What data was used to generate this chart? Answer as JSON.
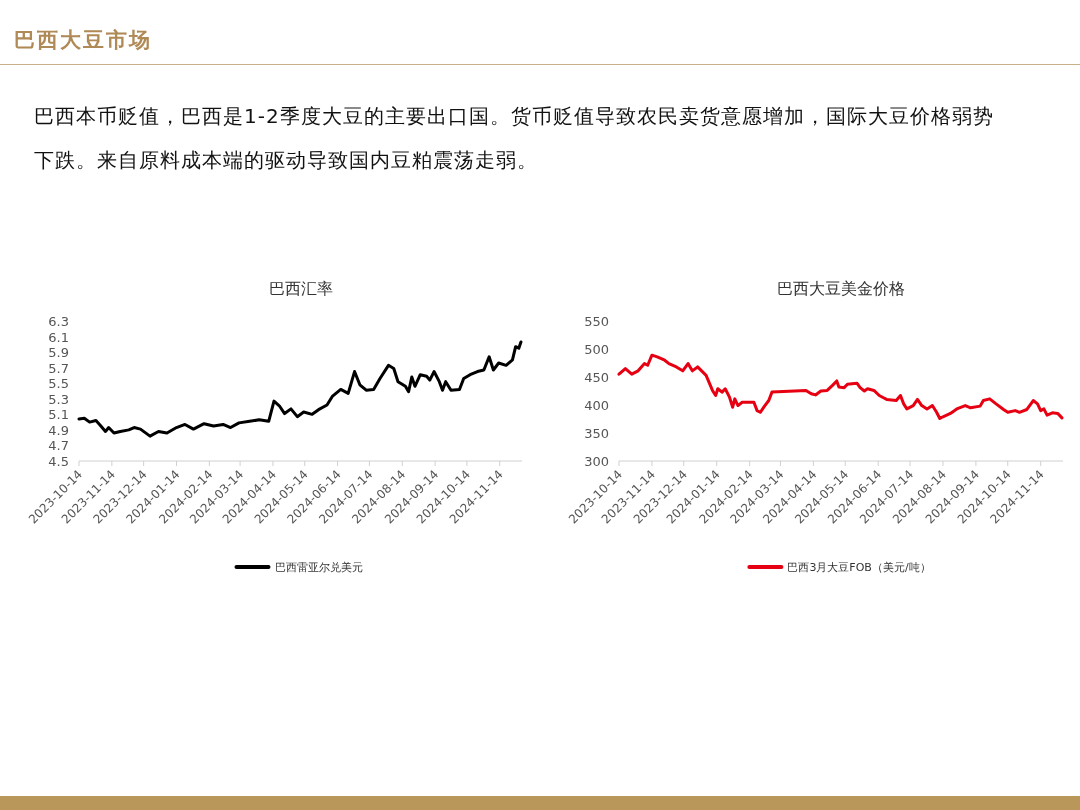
{
  "chart_data": [
    {
      "type": "line",
      "title": "巴西汇率",
      "annotations": [
        "巴西大豆市场",
        "巴西本币贬值，巴西是1-2季度大豆的主要出口国。货币贬值导致农民卖货意愿增加，国际大豆价格弱势下跌。来自原料成本端的驱动导致国内豆粕震荡走弱。"
      ],
      "legend": "bottom",
      "xlim": [
        "2023-10-14",
        "2024-12-05"
      ],
      "xticks": [
        "2023-10-14",
        "2023-11-14",
        "2023-12-14",
        "2024-01-14",
        "2024-02-14",
        "2024-03-14",
        "2024-04-14",
        "2024-05-14",
        "2024-06-14",
        "2024-07-14",
        "2024-08-14",
        "2024-09-14",
        "2024-10-14",
        "2024-11-14"
      ],
      "ylim": [
        4.5,
        6.3
      ],
      "yticks": [
        4.5,
        4.7,
        4.9,
        5.1,
        5.3,
        5.5,
        5.7,
        5.9,
        6.1,
        6.3
      ],
      "series": [
        {
          "name": "巴西雷亚尔兑美元",
          "color": "#000000",
          "x": [
            "2023-10-14",
            "2023-10-19",
            "2023-10-24",
            "2023-10-30",
            "2023-11-03",
            "2023-11-08",
            "2023-11-11",
            "2023-11-16",
            "2023-11-22",
            "2023-11-30",
            "2023-12-05",
            "2023-12-11",
            "2023-12-20",
            "2023-12-28",
            "2024-01-05",
            "2024-01-14",
            "2024-01-22",
            "2024-01-30",
            "2024-02-09",
            "2024-02-18",
            "2024-02-27",
            "2024-03-05",
            "2024-03-13",
            "2024-03-23",
            "2024-04-01",
            "2024-04-10",
            "2024-04-15",
            "2024-04-20",
            "2024-04-25",
            "2024-05-01",
            "2024-05-07",
            "2024-05-13",
            "2024-05-21",
            "2024-05-27",
            "2024-06-04",
            "2024-06-09",
            "2024-06-17",
            "2024-06-24",
            "2024-06-30",
            "2024-07-05",
            "2024-07-11",
            "2024-07-18",
            "2024-07-24",
            "2024-08-01",
            "2024-08-06",
            "2024-08-10",
            "2024-08-17",
            "2024-08-20",
            "2024-08-23",
            "2024-08-26",
            "2024-08-31",
            "2024-09-06",
            "2024-09-09",
            "2024-09-13",
            "2024-09-18",
            "2024-09-21",
            "2024-09-24",
            "2024-09-29",
            "2024-10-07",
            "2024-10-11",
            "2024-10-17",
            "2024-10-24",
            "2024-10-30",
            "2024-11-04",
            "2024-11-08",
            "2024-11-13",
            "2024-11-20",
            "2024-11-26",
            "2024-11-29",
            "2024-12-02",
            "2024-12-04"
          ],
          "values": [
            5.04,
            5.05,
            5.0,
            5.02,
            4.96,
            4.88,
            4.93,
            4.86,
            4.88,
            4.9,
            4.93,
            4.91,
            4.82,
            4.88,
            4.86,
            4.93,
            4.97,
            4.91,
            4.98,
            4.95,
            4.97,
            4.93,
            4.99,
            5.01,
            5.03,
            5.01,
            5.27,
            5.21,
            5.11,
            5.17,
            5.07,
            5.13,
            5.1,
            5.16,
            5.22,
            5.33,
            5.42,
            5.37,
            5.65,
            5.48,
            5.41,
            5.42,
            5.56,
            5.73,
            5.69,
            5.52,
            5.46,
            5.39,
            5.58,
            5.46,
            5.61,
            5.59,
            5.54,
            5.65,
            5.52,
            5.41,
            5.52,
            5.41,
            5.42,
            5.56,
            5.61,
            5.65,
            5.67,
            5.84,
            5.67,
            5.76,
            5.73,
            5.8,
            5.97,
            5.95,
            6.03
          ]
        }
      ]
    },
    {
      "type": "line",
      "title": "巴西大豆美金价格",
      "legend": "bottom",
      "xlim": [
        "2023-10-14",
        "2024-12-05"
      ],
      "xticks": [
        "2023-10-14",
        "2023-11-14",
        "2023-12-14",
        "2024-01-14",
        "2024-02-14",
        "2024-03-14",
        "2024-04-14",
        "2024-05-14",
        "2024-06-14",
        "2024-07-14",
        "2024-08-14",
        "2024-09-14",
        "2024-10-14",
        "2024-11-14"
      ],
      "ylim": [
        300,
        550
      ],
      "yticks": [
        300,
        350,
        400,
        450,
        500,
        550
      ],
      "series": [
        {
          "name": "巴西3月大豆FOB（美元/吨）",
          "color": "#e60012",
          "x": [
            "2023-10-14",
            "2023-10-20",
            "2023-10-26",
            "2023-11-01",
            "2023-11-07",
            "2023-11-10",
            "2023-11-14",
            "2023-11-19",
            "2023-11-26",
            "2023-11-30",
            "2023-12-07",
            "2023-12-13",
            "2023-12-18",
            "2023-12-22",
            "2023-12-27",
            "2024-01-04",
            "2024-01-10",
            "2024-01-13",
            "2024-01-15",
            "2024-01-19",
            "2024-01-22",
            "2024-01-26",
            "2024-01-29",
            "2024-01-31",
            "2024-02-03",
            "2024-02-07",
            "2024-02-18",
            "2024-02-21",
            "2024-02-24",
            "2024-02-28",
            "2024-03-03",
            "2024-03-06",
            "2024-04-07",
            "2024-04-12",
            "2024-04-16",
            "2024-04-21",
            "2024-04-27",
            "2024-05-02",
            "2024-05-06",
            "2024-05-08",
            "2024-05-13",
            "2024-05-16",
            "2024-05-25",
            "2024-05-28",
            "2024-06-01",
            "2024-06-04",
            "2024-06-10",
            "2024-06-15",
            "2024-06-19",
            "2024-06-22",
            "2024-07-01",
            "2024-07-05",
            "2024-07-08",
            "2024-07-11",
            "2024-07-17",
            "2024-07-21",
            "2024-07-25",
            "2024-07-30",
            "2024-08-04",
            "2024-08-08",
            "2024-08-11",
            "2024-08-14",
            "2024-08-21",
            "2024-08-27",
            "2024-09-04",
            "2024-09-09",
            "2024-09-18",
            "2024-09-21",
            "2024-09-27",
            "2024-10-03",
            "2024-10-10",
            "2024-10-14",
            "2024-10-21",
            "2024-10-25",
            "2024-11-01",
            "2024-11-07",
            "2024-11-11",
            "2024-11-14",
            "2024-11-17",
            "2024-11-20",
            "2024-11-25",
            "2024-11-30",
            "2024-12-04"
          ],
          "values": [
            455,
            465,
            455,
            461,
            474,
            471,
            489,
            486,
            480,
            474,
            468,
            461,
            474,
            461,
            468,
            453,
            426,
            417,
            429,
            423,
            429,
            414,
            396,
            411,
            399,
            405,
            405,
            390,
            387,
            398,
            408,
            423,
            426,
            420,
            418,
            425,
            426,
            435,
            443,
            432,
            431,
            437,
            439,
            431,
            425,
            429,
            426,
            417,
            413,
            410,
            408,
            417,
            402,
            393,
            399,
            410,
            399,
            393,
            399,
            387,
            376,
            379,
            385,
            393,
            399,
            395,
            398,
            408,
            411,
            402,
            392,
            387,
            390,
            387,
            392,
            408,
            402,
            390,
            393,
            382,
            386,
            385,
            377
          ]
        }
      ]
    }
  ]
}
